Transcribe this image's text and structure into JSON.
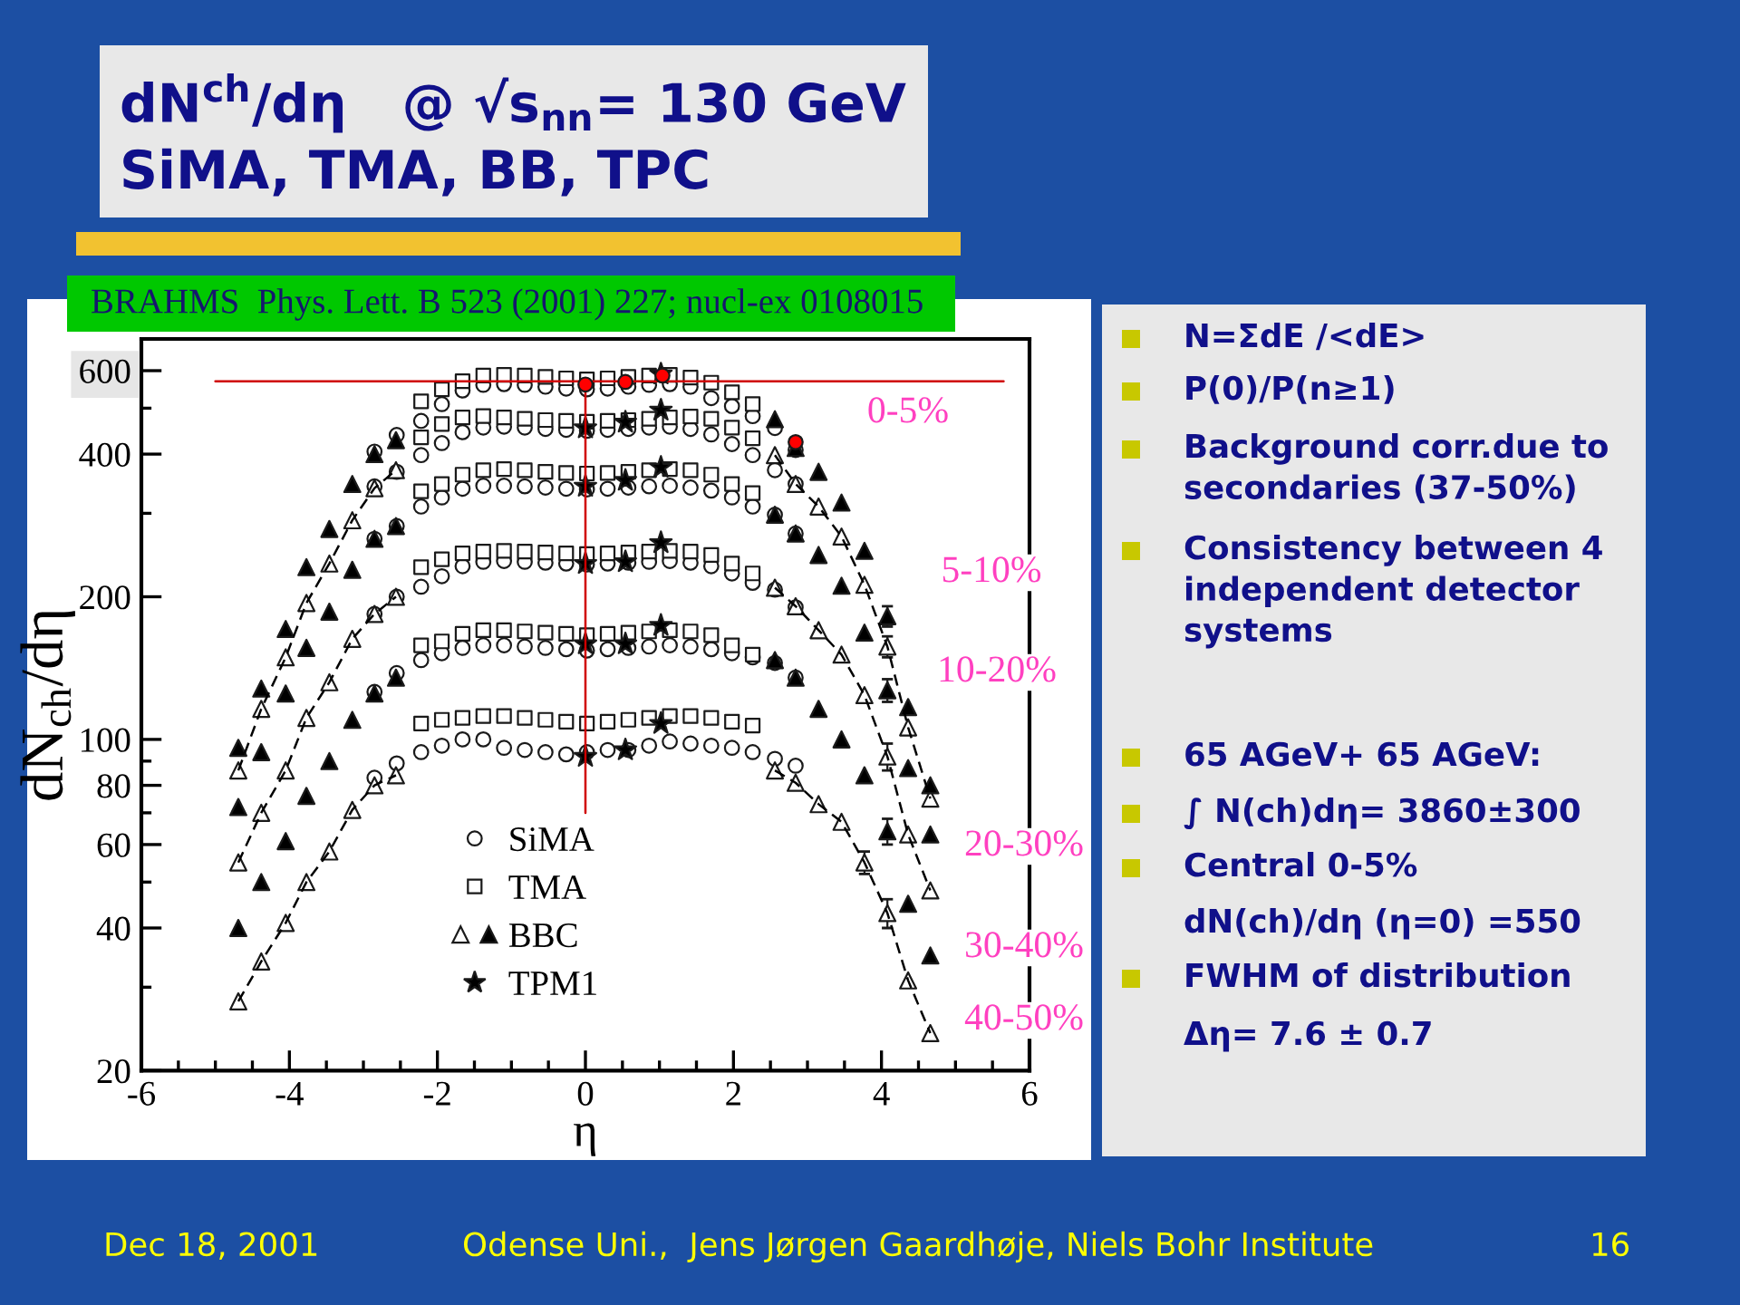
{
  "chart_data": {
    "type": "scatter",
    "title": "dN$^{ch}$/dη   @ √s$_{nn}$= 130 GeV",
    "subtitle": "SiMA, TMA, BB, TPC",
    "xlabel": "η",
    "ylabel": "dN$_{ch}$/dη",
    "xlim": [
      -6,
      6
    ],
    "ylim": [
      20,
      700
    ],
    "log": true,
    "legend": "bottom",
    "xticks": [
      -6,
      {
        "value": -5.5,
        "label": null
      },
      {
        "value": -5,
        "label": null
      },
      {
        "value": -4.5,
        "label": null
      },
      -4,
      {
        "value": -3.5,
        "label": null
      },
      {
        "value": -3,
        "label": null
      },
      {
        "value": -2.5,
        "label": null
      },
      -2,
      {
        "value": -1.5,
        "label": null
      },
      {
        "value": -1,
        "label": null
      },
      {
        "value": -0.5,
        "label": null
      },
      0,
      {
        "value": 0.5,
        "label": null
      },
      {
        "value": 1,
        "label": null
      },
      {
        "value": 1.5,
        "label": null
      },
      2,
      {
        "value": 2.5,
        "label": null
      },
      {
        "value": 3,
        "label": null
      },
      {
        "value": 3.5,
        "label": null
      },
      4,
      {
        "value": 4.5,
        "label": null
      },
      {
        "value": 5,
        "label": null
      },
      {
        "value": 5.5,
        "label": null
      },
      6
    ],
    "yticks": [
      20,
      {
        "value": 30,
        "label": null
      },
      40,
      {
        "value": 50,
        "label": null
      },
      60,
      {
        "value": 70,
        "label": null
      },
      80,
      {
        "value": 90,
        "label": null
      },
      100,
      200,
      {
        "value": 300,
        "label": null
      },
      400,
      {
        "value": 500,
        "label": null
      },
      600
    ],
    "series": [
      {
        "name": "SiMA",
        "marker": "circle",
        "color": "#ffffff",
        "x": [
          -2.85,
          -2.55,
          -2.22,
          -1.94,
          -1.66,
          -1.38,
          -1.1,
          -0.82,
          -0.54,
          -0.26,
          0.02,
          0.3,
          0.58,
          0.86,
          1.14,
          1.42,
          1.7,
          1.98,
          2.26,
          2.56,
          2.84,
          -2.85,
          -2.55,
          -2.22,
          -1.94,
          -1.66,
          -1.38,
          -1.1,
          -0.82,
          -0.54,
          -0.26,
          0.02,
          0.3,
          0.58,
          0.86,
          1.14,
          1.42,
          1.7,
          1.98,
          2.26,
          2.56,
          2.84,
          -2.85,
          -2.55,
          -2.22,
          -1.94,
          -1.66,
          -1.38,
          -1.1,
          -0.82,
          -0.54,
          -0.26,
          0.02,
          0.3,
          0.58,
          0.86,
          1.14,
          1.42,
          1.7,
          1.98,
          2.26,
          2.56,
          2.84,
          -2.85,
          -2.55,
          -2.22,
          -1.94,
          -1.66,
          -1.38,
          -1.1,
          -0.82,
          -0.54,
          -0.26,
          0.02,
          0.3,
          0.58,
          0.86,
          1.14,
          1.42,
          1.7,
          1.98,
          2.26,
          2.56,
          2.84,
          -2.85,
          -2.55,
          -2.22,
          -1.94,
          -1.66,
          -1.38,
          -1.1,
          -0.82,
          -0.54,
          -0.26,
          0.02,
          0.3,
          0.58,
          0.86,
          1.14,
          1.42,
          1.7,
          1.98,
          2.26,
          2.56,
          2.84,
          -2.85,
          -2.55,
          -2.22,
          -1.94,
          -1.66,
          -1.38,
          -1.1,
          -0.82,
          -0.54,
          -0.26,
          0.02,
          0.3,
          0.58,
          0.86,
          1.14,
          1.42,
          1.7,
          1.98,
          2.26,
          2.56,
          2.84
        ],
        "values": [
          405,
          439,
          470,
          510,
          545,
          560,
          562,
          560,
          555,
          550,
          548,
          550,
          555,
          560,
          562,
          555,
          525,
          505,
          481,
          454,
          408,
          342,
          367,
          398,
          422,
          445,
          455,
          457,
          455,
          452,
          450,
          448,
          450,
          452,
          455,
          457,
          452,
          440,
          420,
          398,
          370,
          346,
          265,
          282,
          310,
          324,
          338,
          343,
          343,
          342,
          340,
          338,
          337,
          338,
          340,
          342,
          343,
          340,
          335,
          324,
          310,
          298,
          272,
          184,
          200,
          210,
          221,
          232,
          237,
          238,
          237,
          236,
          235,
          234,
          235,
          236,
          237,
          238,
          236,
          232,
          224,
          214,
          207,
          190,
          126,
          138,
          147,
          152,
          156,
          158,
          158,
          157,
          156,
          155,
          154,
          155,
          156,
          157,
          158,
          157,
          155,
          152,
          149,
          145,
          135,
          83,
          89,
          94,
          97,
          100,
          100,
          96,
          95,
          94,
          93,
          94,
          95,
          95,
          97,
          99,
          98,
          97,
          96,
          94,
          91,
          88
        ]
      },
      {
        "name": "TMA",
        "marker": "square",
        "color": "#ffffff",
        "x": [
          -2.22,
          -1.94,
          -1.66,
          -1.38,
          -1.1,
          -0.82,
          -0.54,
          -0.26,
          0.02,
          0.3,
          0.58,
          0.86,
          1.14,
          1.42,
          1.7,
          1.98,
          2.26,
          -2.22,
          -1.94,
          -1.66,
          -1.38,
          -1.1,
          -0.82,
          -0.54,
          -0.26,
          0.02,
          0.3,
          0.58,
          0.86,
          1.14,
          1.42,
          1.7,
          1.98,
          2.26,
          -2.22,
          -1.94,
          -1.66,
          -1.38,
          -1.1,
          -0.82,
          -0.54,
          -0.26,
          0.02,
          0.3,
          0.58,
          0.86,
          1.14,
          1.42,
          1.7,
          1.98,
          2.26,
          -2.22,
          -1.94,
          -1.66,
          -1.38,
          -1.1,
          -0.82,
          -0.54,
          -0.26,
          0.02,
          0.3,
          0.58,
          0.86,
          1.14,
          1.42,
          1.7,
          1.98,
          2.26,
          -2.22,
          -1.94,
          -1.66,
          -1.38,
          -1.1,
          -0.82,
          -0.54,
          -0.26,
          0.02,
          0.3,
          0.58,
          0.86,
          1.14,
          1.42,
          1.7,
          1.98,
          2.26,
          -2.22,
          -1.94,
          -1.66,
          -1.38,
          -1.1,
          -0.82,
          -0.54,
          -0.26,
          0.02,
          0.3,
          0.58,
          0.86,
          1.14,
          1.42,
          1.7,
          1.98,
          2.26
        ],
        "values": [
          517,
          548,
          570,
          586,
          588,
          586,
          582,
          578,
          575,
          578,
          582,
          586,
          588,
          580,
          566,
          540,
          510,
          434,
          463,
          478,
          481,
          478,
          475,
          472,
          470,
          468,
          470,
          472,
          475,
          478,
          480,
          475,
          455,
          432,
          334,
          346,
          362,
          370,
          372,
          370,
          367,
          365,
          364,
          365,
          367,
          370,
          372,
          370,
          362,
          346,
          331,
          231,
          240,
          247,
          249,
          250,
          249,
          248,
          247,
          246,
          247,
          248,
          249,
          250,
          249,
          245,
          235,
          224,
          158,
          161,
          167,
          170,
          170,
          169,
          168,
          167,
          166,
          167,
          168,
          169,
          170,
          169,
          166,
          158,
          151,
          108,
          110,
          111,
          112,
          112,
          111,
          110,
          109,
          108,
          109,
          110,
          111,
          112,
          112,
          111,
          109,
          107
        ]
      },
      {
        "marker": "triangle",
        "color": "#ffffff",
        "x": [
          -4.69,
          -4.38,
          -4.05,
          -3.77,
          -3.46,
          -3.15,
          -2.85,
          -2.56,
          2.56,
          2.84,
          3.15,
          3.46,
          3.77,
          4.08,
          4.36,
          4.66,
          -4.69,
          -4.38,
          -4.05,
          -3.77,
          -3.46,
          -3.15,
          -2.85,
          -2.56,
          2.56,
          2.84,
          3.15,
          3.46,
          3.77,
          4.08,
          4.36,
          4.66,
          -4.69,
          -4.38,
          -4.05,
          -3.77,
          -3.46,
          -3.15,
          -2.85,
          -2.56,
          2.56,
          2.84,
          3.15,
          3.46,
          3.77,
          4.08,
          4.36,
          4.66
        ],
        "values": [
          86,
          116,
          149,
          194,
          235,
          290,
          339,
          370,
          398,
          346,
          310,
          268,
          212,
          157,
          106,
          75,
          55,
          70,
          86,
          111,
          132,
          163,
          184,
          200,
          209,
          191,
          170,
          151,
          124,
          92,
          63,
          48,
          28,
          34,
          41,
          50,
          58,
          71,
          80,
          84,
          86,
          81,
          73,
          67,
          55,
          43,
          31,
          24
        ],
        "errors": [
          null,
          null,
          null,
          null,
          null,
          null,
          null,
          null,
          null,
          null,
          null,
          null,
          null,
          8,
          null,
          null,
          null,
          null,
          null,
          null,
          null,
          null,
          null,
          null,
          null,
          null,
          null,
          null,
          null,
          6,
          null,
          null,
          null,
          null,
          null,
          null,
          null,
          null,
          null,
          null,
          null,
          null,
          null,
          null,
          3,
          3,
          null,
          null
        ]
      },
      {
        "name": "BBC",
        "marker": "triangle",
        "color": "#000000",
        "x": [
          -4.69,
          -4.38,
          -4.05,
          -3.77,
          -3.46,
          -3.15,
          -2.85,
          -2.56,
          2.56,
          2.84,
          3.15,
          3.46,
          3.77,
          4.08,
          4.36,
          4.66,
          -4.69,
          -4.38,
          -4.05,
          -3.77,
          -3.46,
          -3.15,
          -2.85,
          -2.56,
          2.56,
          2.84,
          3.15,
          3.46,
          3.77,
          4.08,
          4.36,
          4.66,
          -4.69,
          -4.38,
          -4.05,
          -3.77,
          -3.46,
          -3.15,
          -2.85,
          -2.56,
          2.56,
          2.84,
          3.15,
          3.46,
          3.77,
          4.08,
          4.36,
          4.66
        ],
        "values": [
          96,
          128,
          171,
          231,
          278,
          346,
          400,
          428,
          474,
          412,
          367,
          316,
          250,
          182,
          117,
          80,
          72,
          94,
          125,
          156,
          186,
          228,
          265,
          282,
          298,
          272,
          245,
          211,
          168,
          127,
          87,
          63,
          40,
          50,
          61,
          76,
          90,
          110,
          125,
          135,
          147,
          135,
          116,
          100,
          84,
          64,
          45,
          35
        ],
        "errors": [
          null,
          null,
          null,
          null,
          null,
          null,
          null,
          null,
          null,
          null,
          null,
          null,
          null,
          9,
          null,
          null,
          null,
          null,
          null,
          null,
          null,
          null,
          null,
          null,
          null,
          null,
          null,
          null,
          null,
          7,
          null,
          null,
          null,
          null,
          null,
          null,
          null,
          null,
          null,
          null,
          null,
          null,
          null,
          null,
          null,
          4,
          null,
          null
        ]
      },
      {
        "type": "line",
        "marker": "none",
        "line_style": "dashed",
        "color": "#000000",
        "x": [
          -4.69,
          -4.38,
          -4.05,
          -3.77,
          -3.46,
          -3.15,
          -2.85,
          -2.56
        ],
        "values": [
          86,
          116,
          149,
          194,
          235,
          290,
          339,
          370
        ]
      },
      {
        "type": "line",
        "marker": "none",
        "line_style": "dashed",
        "color": "#000000",
        "x": [
          2.56,
          2.84,
          3.15,
          3.46,
          3.77,
          4.08,
          4.36,
          4.66
        ],
        "values": [
          398,
          346,
          310,
          268,
          212,
          157,
          106,
          75
        ]
      },
      {
        "type": "line",
        "marker": "none",
        "line_style": "dashed",
        "color": "#000000",
        "x": [
          -4.69,
          -4.38,
          -4.05,
          -3.77,
          -3.46,
          -3.15,
          -2.85,
          -2.56
        ],
        "values": [
          55,
          70,
          86,
          111,
          132,
          163,
          184,
          200
        ]
      },
      {
        "type": "line",
        "marker": "none",
        "line_style": "dashed",
        "color": "#000000",
        "x": [
          2.56,
          2.84,
          3.15,
          3.46,
          3.77,
          4.08,
          4.36,
          4.66
        ],
        "values": [
          209,
          191,
          170,
          151,
          124,
          92,
          63,
          48
        ]
      },
      {
        "type": "line",
        "marker": "none",
        "line_style": "dashed",
        "color": "#000000",
        "x": [
          -4.69,
          -4.38,
          -4.05,
          -3.77,
          -3.46,
          -3.15,
          -2.85,
          -2.56
        ],
        "values": [
          28,
          34,
          41,
          50,
          58,
          71,
          80,
          84
        ]
      },
      {
        "type": "line",
        "marker": "none",
        "line_style": "dashed",
        "color": "#000000",
        "x": [
          2.56,
          2.84,
          3.15,
          3.46,
          3.77,
          4.08,
          4.36,
          4.66
        ],
        "values": [
          86,
          81,
          73,
          67,
          55,
          43,
          31,
          24
        ]
      },
      {
        "name": "TPM1",
        "marker": "star",
        "color": "#000000",
        "x": [
          1.02,
          0,
          0.54,
          1.02,
          0,
          0.54,
          1.02,
          0,
          0.54,
          1.02,
          0,
          0.54,
          1.02,
          0,
          0.54,
          1.02
        ],
        "values": [
          590,
          454,
          467,
          495,
          342,
          352,
          375,
          235,
          237,
          260,
          159,
          159,
          174,
          92,
          95,
          108
        ]
      },
      {
        "type": "line",
        "marker": "none",
        "line_style": "solid",
        "color": "#d00000",
        "x": [
          -5,
          5.65
        ],
        "values": [
          570,
          570
        ]
      },
      {
        "type": "line",
        "marker": "none",
        "line_style": "solid",
        "color": "#d00000",
        "x": [
          0,
          0
        ],
        "values": [
          570,
          70
        ]
      },
      {
        "marker": "circle",
        "color": "#ff0000",
        "x": [
          0,
          0.54,
          1.04,
          2.84
        ],
        "values": [
          561,
          568,
          586,
          424
        ]
      }
    ],
    "annotations": [
      "0-5%",
      "5-10%",
      "10-20%",
      "20-30%",
      "30-40%",
      "40-50%",
      "BRAHMS  Phys. Lett. B 523 (2001) 227; nucl-ex 0108015",
      "N=ΣdE /<dE>",
      "P(0)/P(n≥1)",
      "Background corr.due to\nsecondaries (37-50%)",
      "Consistency between 4\nindependent detector\nsystems",
      "65 AGeV+ 65 AGeV:",
      "∫ N(ch)dη= 3860±300",
      "Central 0-5%",
      "dN(ch)/dη (η=0) =550",
      "FWHM of distribution",
      "Δη= 7.6 ± 0.7",
      "Dec 18, 2001",
      "Odense Uni.,  Jens Jørgen Gaardhøje, Niels Bohr Institute",
      "16"
    ]
  }
}
